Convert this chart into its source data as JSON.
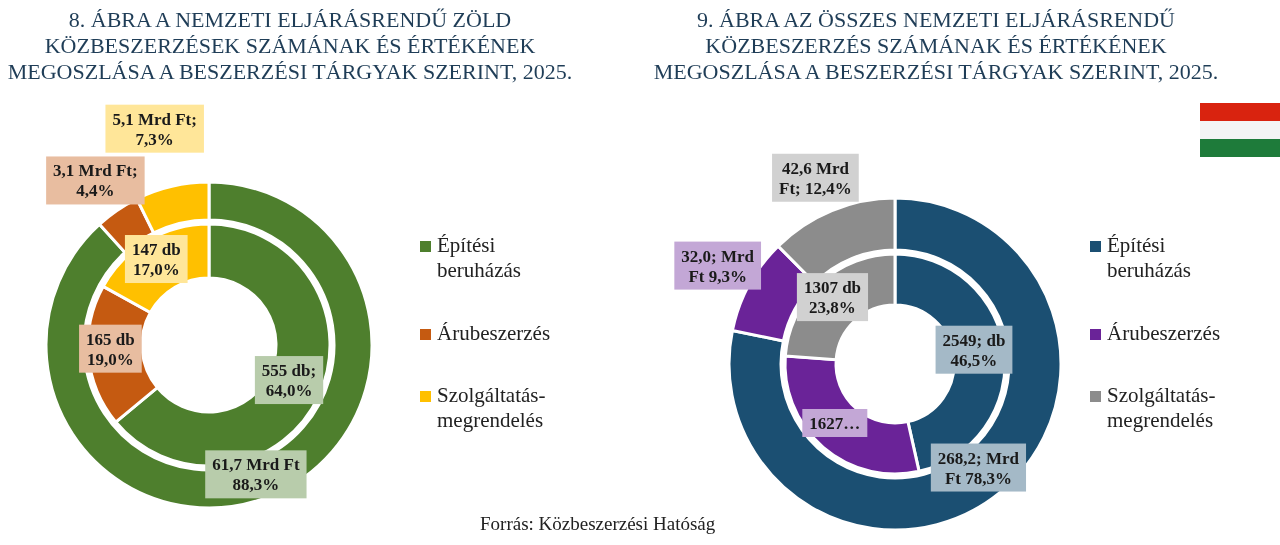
{
  "chart_data": [
    {
      "type": "donut",
      "title": "8. ÁBRA A NEMZETI ELJÁRÁSRENDŰ ZÖLD KÖZBESZERZÉSEK SZÁMÁNAK ÉS ÉRTÉKÉNEK MEGOSZLÁSA A BESZERZÉSI TÁRGYAK SZERINT, 2025.",
      "categories": [
        "Építési beruházás",
        "Árubeszerzés",
        "Szolgáltatás-megrendelés"
      ],
      "colors": [
        "#4e7f2d",
        "#c55a11",
        "#ffc000"
      ],
      "series": [
        {
          "values": [
            555,
            165,
            147
          ],
          "value_labels": [
            "555 db; 64,0%",
            "165 db 19,0%",
            "147 db 17,0%"
          ]
        },
        {
          "values": [
            61.7,
            3.1,
            5.1
          ],
          "value_labels": [
            "61,7 Mrd Ft 88,3%",
            "3,1 Mrd Ft; 4,4%",
            "5,1 Mrd Ft; 7,3%"
          ]
        }
      ],
      "legend": "right",
      "annotations": [
        "Forrás: Közbeszerzési Hatóság"
      ]
    },
    {
      "type": "donut",
      "title": "9. ÁBRA AZ ÖSSZES NEMZETI ELJÁRÁSRENDŰ KÖZBESZERZÉS SZÁMÁNAK ÉS ÉRTÉKÉNEK MEGOSZLÁSA A BESZERZÉSI TÁRGYAK SZERINT, 2025.",
      "categories": [
        "Építési beruházás",
        "Árubeszerzés",
        "Szolgáltatás-megrendelés"
      ],
      "colors": [
        "#1b4f72",
        "#6a2398",
        "#8c8c8c"
      ],
      "series": [
        {
          "values": [
            2549,
            1627,
            1307
          ],
          "value_labels": [
            "2549; db 46,5%",
            "1627…",
            "1307 db 23,8%"
          ]
        },
        {
          "values": [
            268.2,
            32.0,
            42.6
          ],
          "value_labels": [
            "268,2; Mrd Ft 78,3%",
            "32,0; Mrd Ft 9,3%",
            "42,6 Mrd Ft; 12,4%"
          ]
        }
      ],
      "legend": "right"
    }
  ]
}
